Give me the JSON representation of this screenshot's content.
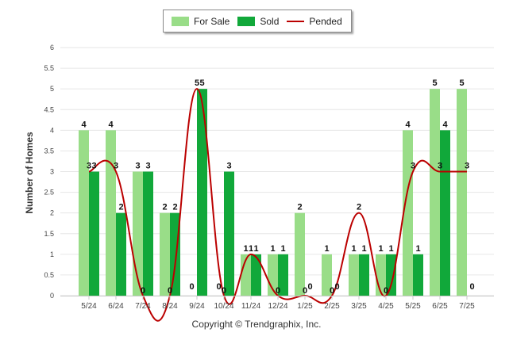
{
  "chart_data": {
    "type": "bar",
    "title": "",
    "xlabel": "",
    "ylabel": "Number of Homes",
    "ylim": [
      0,
      6
    ],
    "yticks": [
      0,
      0.5,
      1,
      1.5,
      2,
      2.5,
      3,
      3.5,
      4,
      4.5,
      5,
      5.5,
      6
    ],
    "ytick_labels": [
      "0",
      "0.5",
      "1",
      "1.5",
      "2",
      "2.5",
      "3",
      "3.5",
      "4",
      "4.5",
      "5",
      "5.5",
      "6"
    ],
    "grid": true,
    "legend_position": "top-center",
    "categories": [
      "5/24",
      "6/24",
      "7/24",
      "8/24",
      "9/24",
      "10/24",
      "11/24",
      "12/24",
      "1/25",
      "2/25",
      "3/25",
      "4/25",
      "5/25",
      "6/25",
      "7/25"
    ],
    "series": [
      {
        "name": "For Sale",
        "kind": "bar",
        "color": "#99dd88",
        "values": [
          4,
          4,
          3,
          2,
          0,
          0,
          1,
          1,
          2,
          1,
          1,
          1,
          4,
          5,
          5
        ]
      },
      {
        "name": "Sold",
        "kind": "bar",
        "color": "#11a83a",
        "values": [
          3,
          2,
          3,
          2,
          5,
          3,
          1,
          1,
          0,
          0,
          1,
          1,
          1,
          4,
          0
        ]
      },
      {
        "name": "Pended",
        "kind": "line",
        "color": "#bb0000",
        "values": [
          3,
          3,
          0,
          0,
          5,
          0,
          1,
          0,
          0,
          0,
          2,
          0,
          3,
          3,
          3
        ]
      }
    ]
  },
  "footer": {
    "copyright": "Copyright © Trendgraphix, Inc."
  }
}
